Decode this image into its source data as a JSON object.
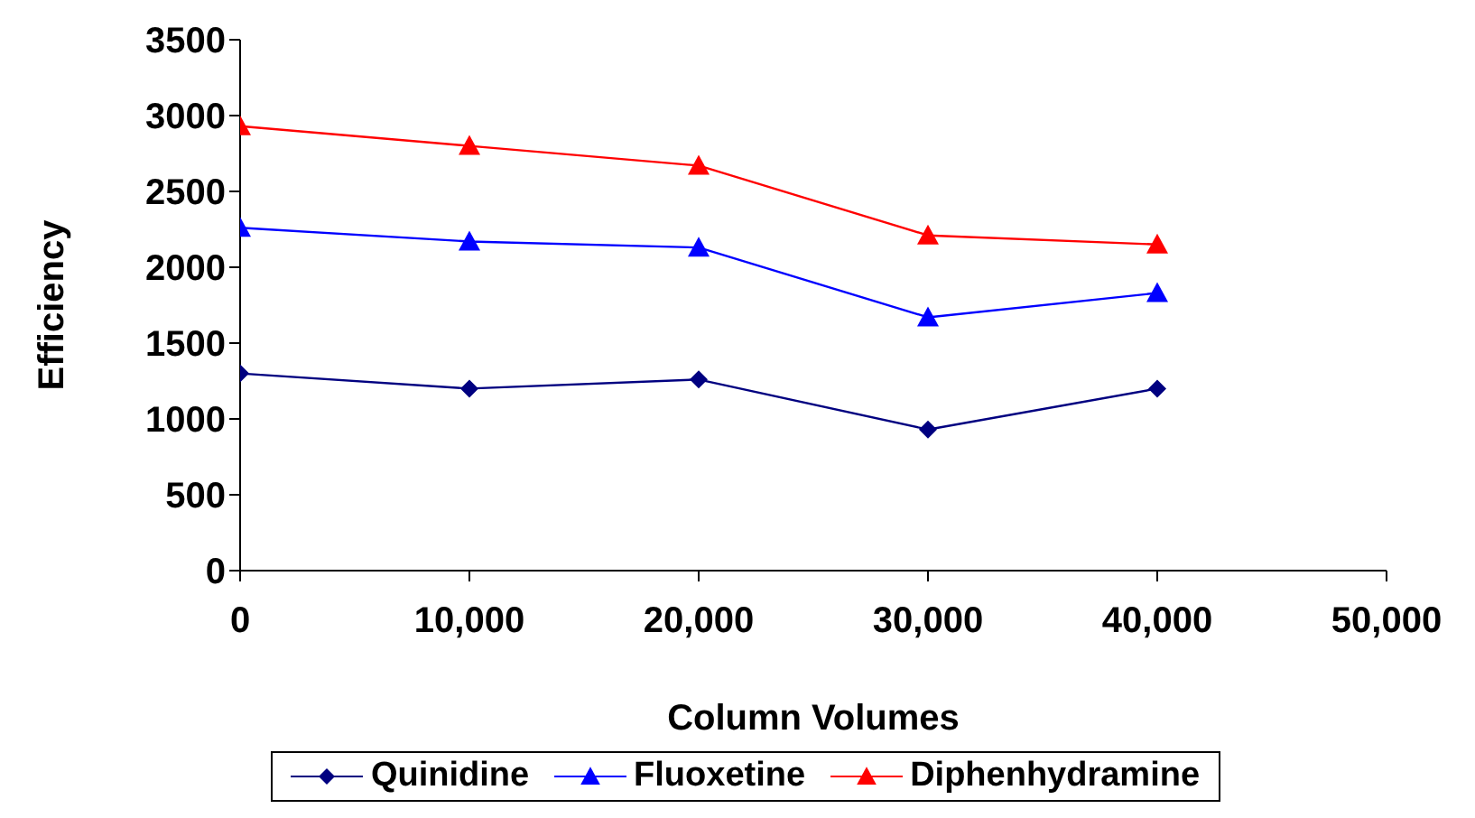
{
  "chart_data": {
    "type": "line",
    "xlabel": "Column Volumes",
    "ylabel": "Efficiency",
    "x": [
      0,
      10000,
      20000,
      30000,
      40000
    ],
    "xlim": [
      0,
      50000
    ],
    "xticks": [
      {
        "value": 0,
        "label": "0"
      },
      {
        "value": 10000,
        "label": "10,000"
      },
      {
        "value": 20000,
        "label": "20,000"
      },
      {
        "value": 30000,
        "label": "30,000"
      },
      {
        "value": 40000,
        "label": "40,000"
      },
      {
        "value": 50000,
        "label": "50,000"
      }
    ],
    "ylim": [
      0,
      3500
    ],
    "yticks": [
      0,
      500,
      1000,
      1500,
      2000,
      2500,
      3000,
      3500
    ],
    "grid": false,
    "legend": "bottom",
    "line_style": "solid",
    "series": [
      {
        "name": "Quinidine",
        "color": "#000080",
        "marker": "diamond",
        "values": [
          1300,
          1200,
          1260,
          930,
          1200
        ]
      },
      {
        "name": "Fluoxetine",
        "color": "#0000ff",
        "marker": "triangle",
        "values": [
          2260,
          2170,
          2130,
          1670,
          1830
        ]
      },
      {
        "name": "Diphenhydramine",
        "color": "#ff0000",
        "marker": "triangle",
        "values": [
          2930,
          2800,
          2670,
          2210,
          2150
        ]
      }
    ]
  }
}
